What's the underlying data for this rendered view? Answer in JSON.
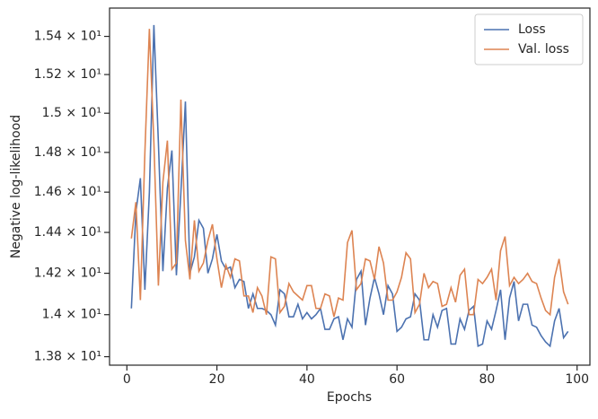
{
  "chart_data": {
    "type": "line",
    "xlabel": "Epochs",
    "ylabel": "Negative log-likelihood",
    "x": [
      1,
      2,
      3,
      4,
      5,
      6,
      7,
      8,
      9,
      10,
      11,
      12,
      13,
      14,
      15,
      16,
      17,
      18,
      19,
      20,
      21,
      22,
      23,
      24,
      25,
      26,
      27,
      28,
      29,
      30,
      31,
      32,
      33,
      34,
      35,
      36,
      37,
      38,
      39,
      40,
      41,
      42,
      43,
      44,
      45,
      46,
      47,
      48,
      49,
      50,
      51,
      52,
      53,
      54,
      55,
      56,
      57,
      58,
      59,
      60,
      61,
      62,
      63,
      64,
      65,
      66,
      67,
      68,
      69,
      70,
      71,
      72,
      73,
      74,
      75,
      76,
      77,
      78,
      79,
      80,
      81,
      82,
      83,
      84,
      85,
      86,
      87,
      88,
      89,
      90,
      91,
      92,
      93,
      94,
      95,
      96,
      97,
      98
    ],
    "series": [
      {
        "name": "Loss",
        "color": "#4c72b0",
        "values": [
          14.03,
          14.5,
          14.67,
          14.12,
          14.6,
          15.46,
          14.85,
          14.21,
          14.62,
          14.81,
          14.19,
          14.6,
          15.06,
          14.2,
          14.28,
          14.46,
          14.42,
          14.2,
          14.27,
          14.39,
          14.26,
          14.22,
          14.23,
          14.13,
          14.17,
          14.16,
          14.03,
          14.1,
          14.03,
          14.03,
          14.02,
          14.0,
          13.95,
          14.12,
          14.1,
          13.99,
          13.99,
          14.05,
          13.98,
          14.01,
          13.98,
          14.0,
          14.03,
          13.93,
          13.93,
          13.98,
          13.99,
          13.88,
          13.98,
          13.94,
          14.17,
          14.21,
          13.95,
          14.08,
          14.18,
          14.1,
          14.0,
          14.14,
          14.1,
          13.92,
          13.94,
          13.98,
          13.99,
          14.1,
          14.07,
          13.88,
          13.88,
          14.0,
          13.94,
          14.02,
          14.03,
          13.86,
          13.86,
          13.98,
          13.93,
          14.02,
          14.04,
          13.85,
          13.86,
          13.97,
          13.93,
          14.02,
          14.12,
          13.88,
          14.08,
          14.16,
          13.97,
          14.05,
          14.05,
          13.95,
          13.94,
          13.9,
          13.87,
          13.85,
          13.97,
          14.03,
          13.89,
          13.92
        ]
      },
      {
        "name": "Val. loss",
        "color": "#dd8452",
        "values": [
          14.37,
          14.55,
          14.07,
          14.8,
          15.44,
          14.85,
          14.14,
          14.65,
          14.86,
          14.22,
          14.25,
          15.07,
          14.36,
          14.17,
          14.46,
          14.21,
          14.25,
          14.36,
          14.44,
          14.27,
          14.13,
          14.24,
          14.18,
          14.27,
          14.26,
          14.09,
          14.09,
          14.01,
          14.13,
          14.09,
          14.0,
          14.28,
          14.27,
          14.01,
          14.04,
          14.15,
          14.11,
          14.09,
          14.07,
          14.14,
          14.14,
          14.03,
          14.03,
          14.1,
          14.09,
          13.99,
          14.08,
          14.07,
          14.35,
          14.41,
          14.12,
          14.15,
          14.27,
          14.26,
          14.17,
          14.33,
          14.25,
          14.07,
          14.07,
          14.11,
          14.18,
          14.3,
          14.27,
          14.01,
          14.05,
          14.2,
          14.13,
          14.16,
          14.15,
          14.04,
          14.05,
          14.13,
          14.06,
          14.19,
          14.22,
          14.0,
          14.0,
          14.17,
          14.15,
          14.18,
          14.22,
          14.07,
          14.31,
          14.38,
          14.14,
          14.18,
          14.15,
          14.17,
          14.2,
          14.16,
          14.15,
          14.08,
          14.02,
          14.0,
          14.18,
          14.27,
          14.11,
          14.05
        ]
      }
    ],
    "xlim": [
      -3.85,
      102.85
    ],
    "xticks": [
      0,
      20,
      40,
      60,
      80,
      100
    ],
    "ylim": [
      13.76,
      15.55
    ],
    "log_y": true,
    "yticks": [
      {
        "value": 13.8,
        "label": "1.38 × 10¹"
      },
      {
        "value": 14.0,
        "label": "1.4 × 10¹"
      },
      {
        "value": 14.2,
        "label": "1.42 × 10¹"
      },
      {
        "value": 14.4,
        "label": "1.44 × 10¹"
      },
      {
        "value": 14.6,
        "label": "1.46 × 10¹"
      },
      {
        "value": 14.8,
        "label": "1.48 × 10¹"
      },
      {
        "value": 15.0,
        "label": "1.5 × 10¹"
      },
      {
        "value": 15.2,
        "label": "1.52 × 10¹"
      },
      {
        "value": 15.4,
        "label": "1.54 × 10¹"
      }
    ],
    "legend": "upper right"
  }
}
